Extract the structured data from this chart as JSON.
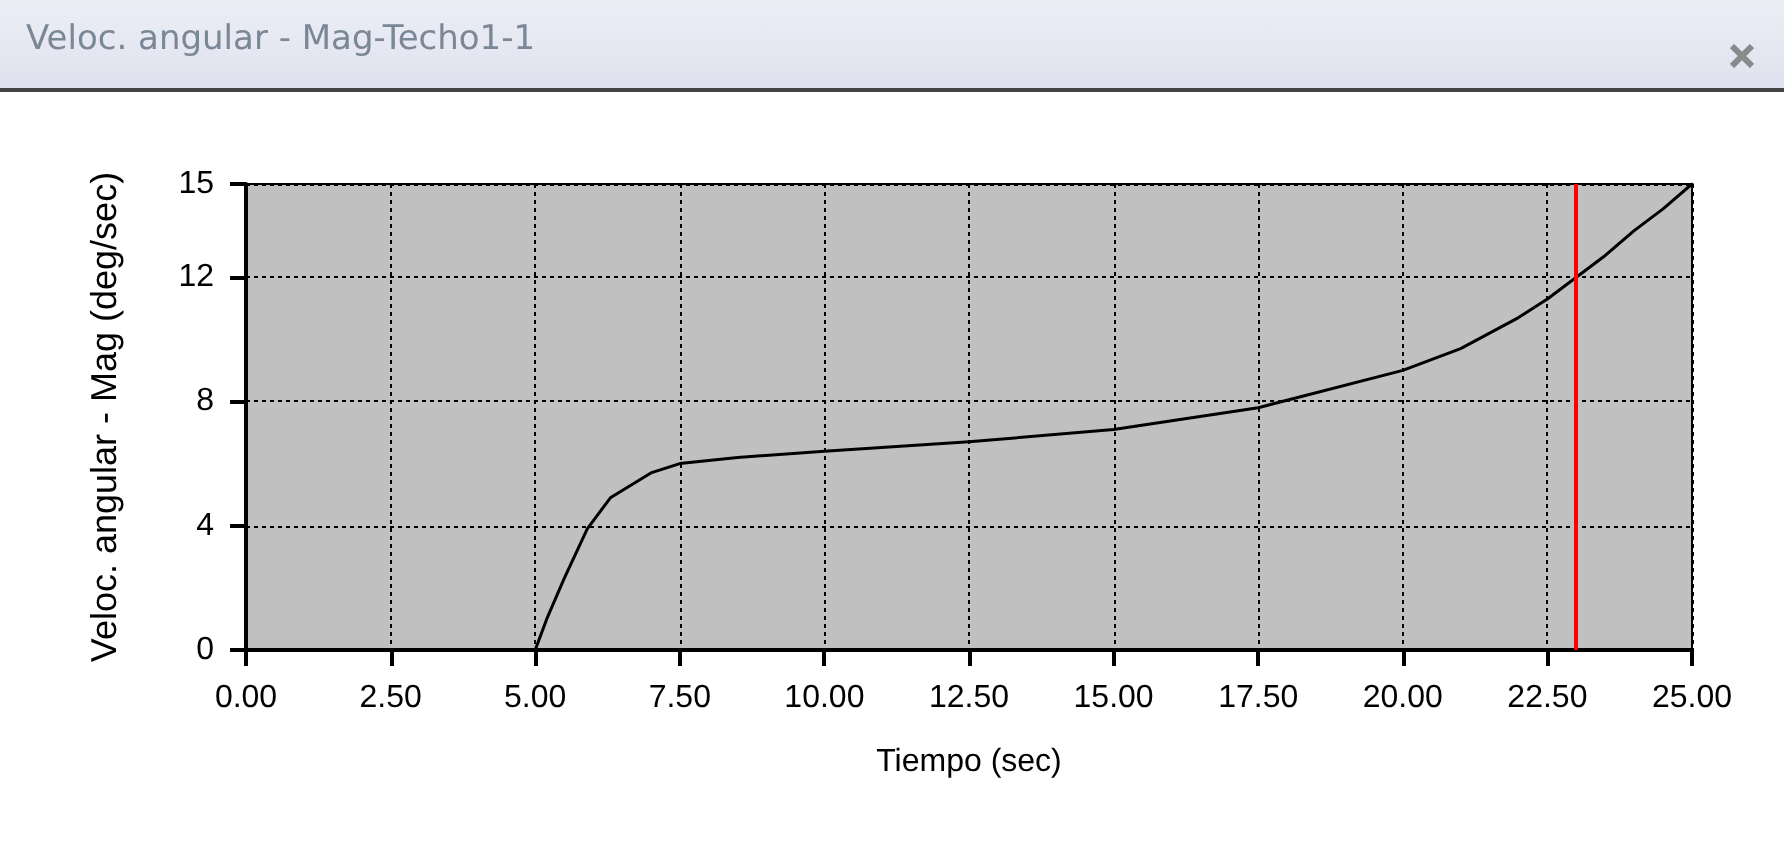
{
  "chart_data": {
    "type": "line",
    "title": "Veloc. angular - Mag-Techo1-1",
    "xlabel": "Tiempo (sec)",
    "ylabel": "Veloc. angular - Mag (deg/sec)",
    "x": [
      5.0,
      5.2,
      5.5,
      5.9,
      6.3,
      7.0,
      7.5,
      8.5,
      10,
      12.5,
      15,
      17.5,
      20,
      21,
      22,
      22.5,
      23,
      23.5,
      24,
      24.5,
      25
    ],
    "series": [
      {
        "color": "#000000",
        "values": [
          0,
          1,
          2.3,
          3.9,
          4.9,
          5.7,
          6.0,
          6.2,
          6.4,
          6.7,
          7.1,
          7.8,
          9.0,
          9.7,
          10.7,
          11.3,
          12.0,
          12.7,
          13.5,
          14.2,
          15
        ]
      }
    ],
    "xlim": [
      0,
      25
    ],
    "xticks": [
      {
        "value": 0,
        "label": "0.00"
      },
      {
        "value": 2.5,
        "label": "2.50"
      },
      {
        "value": 5,
        "label": "5.00"
      },
      {
        "value": 7.5,
        "label": "7.50"
      },
      {
        "value": 10,
        "label": "10.00"
      },
      {
        "value": 12.5,
        "label": "12.50"
      },
      {
        "value": 15,
        "label": "15.00"
      },
      {
        "value": 17.5,
        "label": "17.50"
      },
      {
        "value": 20,
        "label": "20.00"
      },
      {
        "value": 22.5,
        "label": "22.50"
      },
      {
        "value": 25,
        "label": "25.00"
      }
    ],
    "ylim": [
      0,
      15
    ],
    "yticks": [
      0,
      4,
      8,
      12,
      15
    ],
    "grid": true,
    "marker": "none",
    "line_style": "solid",
    "ref_lines": [
      {
        "axis": "x",
        "value": 23,
        "color": "#ff0000"
      }
    ]
  }
}
